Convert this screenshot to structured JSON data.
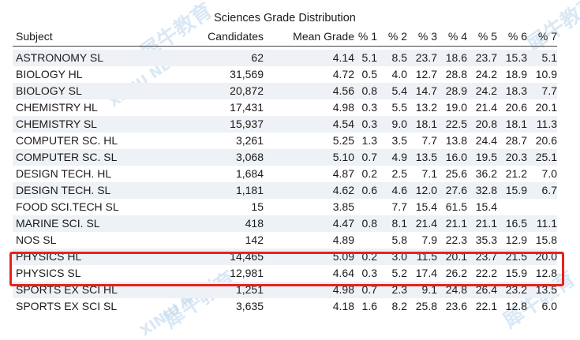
{
  "title": "Sciences Grade Distribution",
  "columns": [
    "Subject",
    "Candidates",
    "Mean Grade",
    "% 1",
    "% 2",
    "% 3",
    "% 4",
    "% 5",
    "% 6",
    "% 7"
  ],
  "rows": [
    {
      "subject": "ASTRONOMY SL",
      "candidates": "62",
      "mean": "4.14",
      "p1": "5.1",
      "p2": "8.5",
      "p3": "23.7",
      "p4": "18.6",
      "p5": "23.7",
      "p6": "15.3",
      "p7": "5.1"
    },
    {
      "subject": "BIOLOGY HL",
      "candidates": "31,569",
      "mean": "4.72",
      "p1": "0.5",
      "p2": "4.0",
      "p3": "12.7",
      "p4": "28.8",
      "p5": "24.2",
      "p6": "18.9",
      "p7": "10.9"
    },
    {
      "subject": "BIOLOGY SL",
      "candidates": "20,872",
      "mean": "4.56",
      "p1": "0.8",
      "p2": "5.4",
      "p3": "14.7",
      "p4": "28.9",
      "p5": "24.2",
      "p6": "18.3",
      "p7": "7.7"
    },
    {
      "subject": "CHEMISTRY HL",
      "candidates": "17,431",
      "mean": "4.98",
      "p1": "0.3",
      "p2": "5.5",
      "p3": "13.2",
      "p4": "19.0",
      "p5": "21.4",
      "p6": "20.6",
      "p7": "20.1"
    },
    {
      "subject": "CHEMISTRY SL",
      "candidates": "15,937",
      "mean": "4.54",
      "p1": "0.3",
      "p2": "9.0",
      "p3": "18.1",
      "p4": "22.5",
      "p5": "20.8",
      "p6": "18.1",
      "p7": "11.3"
    },
    {
      "subject": "COMPUTER SC. HL",
      "candidates": "3,261",
      "mean": "5.25",
      "p1": "1.3",
      "p2": "3.5",
      "p3": "7.7",
      "p4": "13.8",
      "p5": "24.4",
      "p6": "28.7",
      "p7": "20.6"
    },
    {
      "subject": "COMPUTER SC. SL",
      "candidates": "3,068",
      "mean": "5.10",
      "p1": "0.7",
      "p2": "4.9",
      "p3": "13.5",
      "p4": "16.0",
      "p5": "19.5",
      "p6": "20.3",
      "p7": "25.1"
    },
    {
      "subject": "DESIGN TECH. HL",
      "candidates": "1,684",
      "mean": "4.87",
      "p1": "0.2",
      "p2": "2.5",
      "p3": "7.1",
      "p4": "25.6",
      "p5": "36.2",
      "p6": "21.2",
      "p7": "7.0"
    },
    {
      "subject": "DESIGN TECH. SL",
      "candidates": "1,181",
      "mean": "4.62",
      "p1": "0.6",
      "p2": "4.6",
      "p3": "12.0",
      "p4": "27.6",
      "p5": "32.8",
      "p6": "15.9",
      "p7": "6.7"
    },
    {
      "subject": "FOOD SCI.TECH SL",
      "candidates": "15",
      "mean": "3.85",
      "p1": "",
      "p2": "7.7",
      "p3": "15.4",
      "p4": "61.5",
      "p5": "15.4",
      "p6": "",
      "p7": ""
    },
    {
      "subject": "MARINE SCI. SL",
      "candidates": "418",
      "mean": "4.47",
      "p1": "0.8",
      "p2": "8.1",
      "p3": "21.4",
      "p4": "21.1",
      "p5": "21.1",
      "p6": "16.5",
      "p7": "11.1"
    },
    {
      "subject": "NOS SL",
      "candidates": "142",
      "mean": "4.89",
      "p1": "",
      "p2": "5.8",
      "p3": "7.9",
      "p4": "22.3",
      "p5": "35.3",
      "p6": "12.9",
      "p7": "15.8"
    },
    {
      "subject": "PHYSICS HL",
      "candidates": "14,465",
      "mean": "5.09",
      "p1": "0.2",
      "p2": "3.0",
      "p3": "11.5",
      "p4": "20.1",
      "p5": "23.7",
      "p6": "21.5",
      "p7": "20.0"
    },
    {
      "subject": "PHYSICS SL",
      "candidates": "12,981",
      "mean": "4.64",
      "p1": "0.3",
      "p2": "5.2",
      "p3": "17.4",
      "p4": "26.2",
      "p5": "22.2",
      "p6": "15.9",
      "p7": "12.8"
    },
    {
      "subject": "SPORTS EX SCI HL",
      "candidates": "1,251",
      "mean": "4.98",
      "p1": "0.7",
      "p2": "2.3",
      "p3": "9.1",
      "p4": "24.8",
      "p5": "26.4",
      "p6": "23.2",
      "p7": "13.5"
    },
    {
      "subject": "SPORTS EX SCI SL",
      "candidates": "3,635",
      "mean": "4.18",
      "p1": "1.6",
      "p2": "8.2",
      "p3": "25.8",
      "p4": "23.6",
      "p5": "22.1",
      "p6": "12.8",
      "p7": "6.0"
    }
  ],
  "highlight": {
    "rows": [
      "PHYSICS HL",
      "PHYSICS SL"
    ],
    "color": "#e8221c"
  },
  "watermark": {
    "text": "犀牛教育",
    "subtext": "XINIU NEW",
    "color": "#bcd6ee"
  }
}
